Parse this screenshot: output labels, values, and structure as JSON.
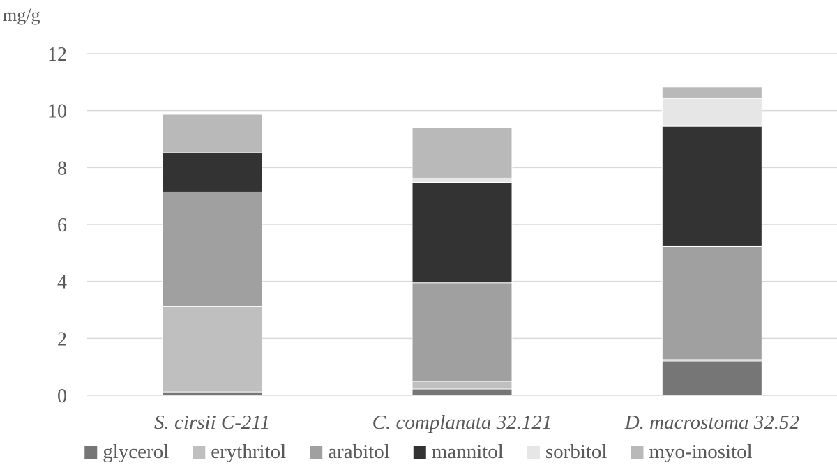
{
  "chart_data": {
    "type": "bar",
    "stacked": true,
    "unit_label": "mg/g",
    "categories": [
      "S. cirsii C-211",
      "C. complanata 32.121",
      "D. macrostoma 32.52"
    ],
    "series": [
      {
        "name": "glycerol",
        "color": "#767676",
        "values": [
          0.12,
          0.22,
          1.2
        ]
      },
      {
        "name": "erythritol",
        "color": "#bfbfbf",
        "values": [
          3.0,
          0.27,
          0.05
        ]
      },
      {
        "name": "arabitol",
        "color": "#a0a0a0",
        "values": [
          4.02,
          3.46,
          3.98
        ]
      },
      {
        "name": "mannitol",
        "color": "#333333",
        "values": [
          1.38,
          3.53,
          4.22
        ]
      },
      {
        "name": "sorbitol",
        "color": "#e6e6e6",
        "values": [
          0.0,
          0.15,
          0.98
        ]
      },
      {
        "name": "myo-inositol",
        "color": "#b9b9b9",
        "values": [
          1.35,
          1.78,
          0.4
        ]
      }
    ],
    "ylim": [
      0,
      12
    ],
    "yticks": [
      0,
      2,
      4,
      6,
      8,
      10,
      12
    ],
    "grid": true,
    "legend_position": "bottom"
  }
}
